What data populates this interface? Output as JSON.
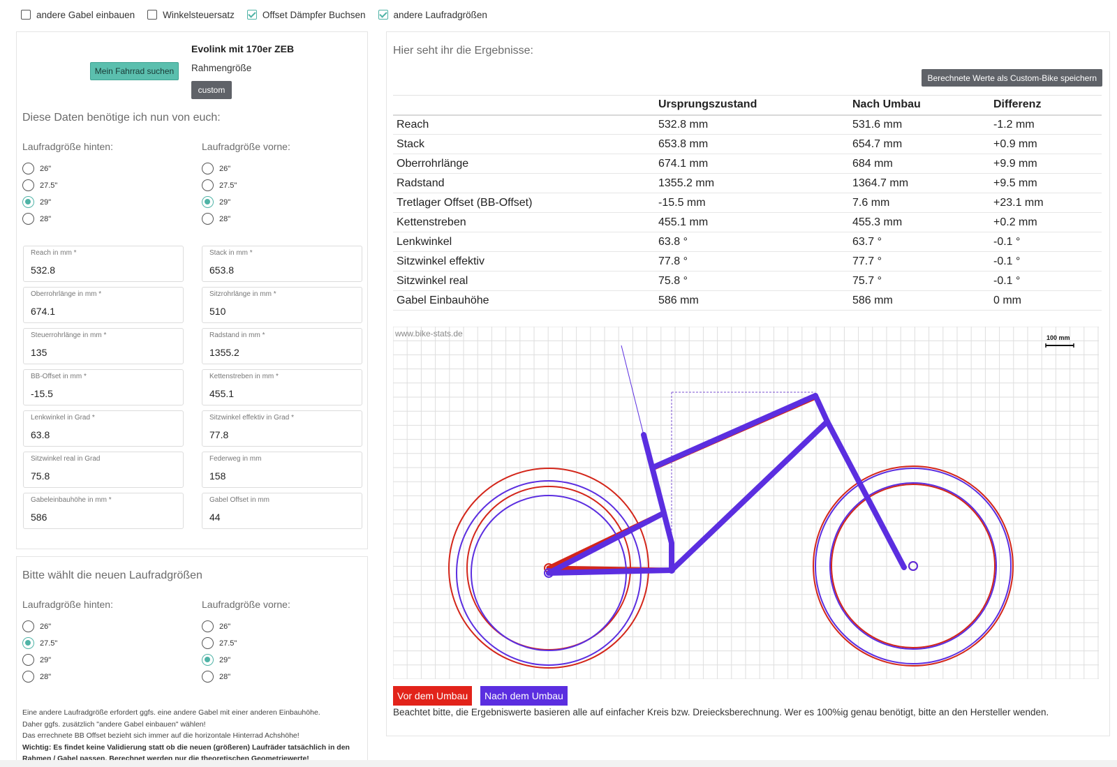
{
  "top_options": [
    {
      "label": "andere Gabel einbauen",
      "checked": false
    },
    {
      "label": "Winkelsteuersatz",
      "checked": false
    },
    {
      "label": "Offset Dämpfer Buchsen",
      "checked": true
    },
    {
      "label": "andere Laufradgrößen",
      "checked": true
    }
  ],
  "bike": {
    "search_label": "Mein Fahrrad suchen",
    "name": "Evolink mit 170er ZEB",
    "frame_size_label": "Rahmengröße",
    "frame_size_value": "custom"
  },
  "input_section": {
    "title": "Diese Daten benötige ich nun von euch:",
    "rear_label": "Laufradgröße hinten:",
    "front_label": "Laufradgröße vorne:",
    "wheel_options": [
      "26\"",
      "27.5\"",
      "29\"",
      "28\""
    ],
    "rear_selected": "29\"",
    "front_selected": "29\"",
    "fields": [
      {
        "label": "Reach in mm *",
        "value": "532.8"
      },
      {
        "label": "Stack in mm *",
        "value": "653.8"
      },
      {
        "label": "Oberrohrlänge in mm *",
        "value": "674.1"
      },
      {
        "label": "Sitzrohrlänge in mm *",
        "value": "510"
      },
      {
        "label": "Steuerrohrlänge in mm *",
        "value": "135"
      },
      {
        "label": "Radstand in mm *",
        "value": "1355.2"
      },
      {
        "label": "BB-Offset in mm *",
        "value": "-15.5"
      },
      {
        "label": "Kettenstreben in mm *",
        "value": "455.1"
      },
      {
        "label": "Lenkwinkel in Grad *",
        "value": "63.8"
      },
      {
        "label": "Sitzwinkel effektiv in Grad *",
        "value": "77.8"
      },
      {
        "label": "Sitzwinkel real in Grad",
        "value": "75.8"
      },
      {
        "label": "Federweg in mm",
        "value": "158"
      },
      {
        "label": "Gabeleinbauhöhe in mm *",
        "value": "586"
      },
      {
        "label": "Gabel Offset in mm",
        "value": "44"
      }
    ]
  },
  "new_wheels": {
    "title": "Bitte wählt die neuen Laufradgrößen",
    "rear_label": "Laufradgröße hinten:",
    "front_label": "Laufradgröße vorne:",
    "rear_selected": "27.5\"",
    "front_selected": "29\"",
    "note_lines": [
      "Eine andere Laufradgröße erfordert ggfs. eine andere Gabel mit einer anderen Einbauhöhe.",
      "Daher ggfs. zusätzlich \"andere Gabel einbauen\" wählen!",
      "Das errechnete BB Offset bezieht sich immer auf die horizontale Hinterrad Achshöhe!"
    ],
    "note_bold": "Wichtig: Es findet keine Validierung statt ob die neuen (größeren) Laufräder tatsächlich in den Rahmen / Gabel passen. Berechnet werden nur die theoretischen Geometriewerte!"
  },
  "results": {
    "title": "Hier seht ihr die Ergebnisse:",
    "save_label": "Berechnete Werte als Custom-Bike speichern",
    "columns": [
      "",
      "Ursprungszustand",
      "Nach Umbau",
      "Differenz"
    ],
    "rows": [
      {
        "name": "Reach",
        "orig": "532.8 mm",
        "new": "531.6 mm",
        "diff": "-1.2 mm",
        "sign": "neg"
      },
      {
        "name": "Stack",
        "orig": "653.8 mm",
        "new": "654.7 mm",
        "diff": "+0.9 mm",
        "sign": "pos"
      },
      {
        "name": "Oberrohrlänge",
        "orig": "674.1 mm",
        "new": "684 mm",
        "diff": "+9.9 mm",
        "sign": "pos"
      },
      {
        "name": "Radstand",
        "orig": "1355.2 mm",
        "new": "1364.7 mm",
        "diff": "+9.5 mm",
        "sign": "pos"
      },
      {
        "name": "Tretlager Offset (BB-Offset)",
        "orig": "-15.5 mm",
        "new": "7.6 mm",
        "diff": "+23.1 mm",
        "sign": "pos"
      },
      {
        "name": "Kettenstreben",
        "orig": "455.1 mm",
        "new": "455.3 mm",
        "diff": "+0.2 mm",
        "sign": "pos"
      },
      {
        "name": "Lenkwinkel",
        "orig": "63.8 °",
        "new": "63.7 °",
        "diff": "-0.1 °",
        "sign": "neg"
      },
      {
        "name": "Sitzwinkel effektiv",
        "orig": "77.8 °",
        "new": "77.7 °",
        "diff": "-0.1 °",
        "sign": "neg"
      },
      {
        "name": "Sitzwinkel real",
        "orig": "75.8 °",
        "new": "75.7 °",
        "diff": "-0.1 °",
        "sign": "neg"
      },
      {
        "name": "Gabel Einbauhöhe",
        "orig": "586 mm",
        "new": "586 mm",
        "diff": "0 mm",
        "sign": "zero"
      }
    ],
    "watermark": "www.bike-stats.de",
    "scale_label": "100 mm",
    "legend_before": "Vor dem Umbau",
    "legend_after": "Nach dem Umbau",
    "disclaimer": "Beachtet bitte, die Ergebniswerte basieren alle auf einfacher Kreis bzw. Dreiecksberechnung. Wer es 100%ig genau benötigt, bitte an den Hersteller wenden.",
    "colors": {
      "before": "#e2231a",
      "after": "#5b2ee0",
      "accent": "#5bbfae"
    }
  }
}
